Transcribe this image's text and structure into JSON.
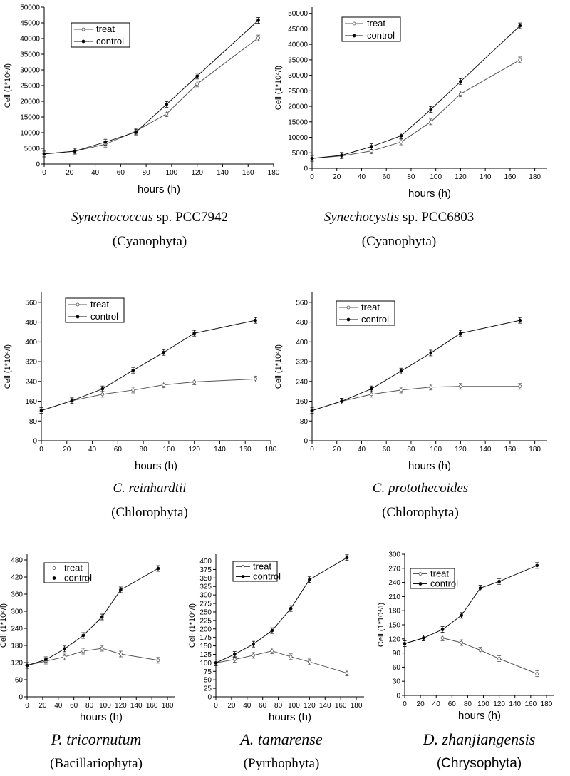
{
  "chart_data": [
    {
      "type": "line",
      "xlabel": "hours (h)",
      "ylabel": "Cell  (1*10⁴/l)",
      "xlim": [
        0,
        180
      ],
      "ylim": [
        0,
        50000
      ],
      "xticks": [
        0,
        20,
        40,
        60,
        80,
        100,
        120,
        140,
        160,
        180
      ],
      "yticks": [
        0,
        5000,
        10000,
        15000,
        20000,
        25000,
        30000,
        35000,
        40000,
        45000,
        50000
      ],
      "x": [
        0,
        24,
        48,
        72,
        96,
        120,
        168
      ],
      "series": [
        {
          "name": "treat",
          "marker": "open",
          "values": [
            3200,
            4100,
            6300,
            10500,
            16000,
            25500,
            40200
          ]
        },
        {
          "name": "control",
          "marker": "filled",
          "values": [
            3200,
            4100,
            7000,
            10200,
            19000,
            28000,
            45800
          ]
        }
      ],
      "legend_position": "top-left",
      "caption": {
        "species_italic": "Synechococcus",
        "species_rest": " sp. PCC7942",
        "division": "(Cyanophyta)"
      }
    },
    {
      "type": "line",
      "xlabel": "hours (h)",
      "ylabel": "Cell  (1*10⁴/l)",
      "xlim": [
        0,
        190
      ],
      "ylim": [
        0,
        52000
      ],
      "xticks": [
        0,
        20,
        40,
        60,
        80,
        100,
        120,
        140,
        160,
        180
      ],
      "yticks": [
        0,
        5000,
        10000,
        15000,
        20000,
        25000,
        30000,
        35000,
        40000,
        45000,
        50000
      ],
      "x": [
        0,
        24,
        48,
        72,
        96,
        120,
        168
      ],
      "series": [
        {
          "name": "treat",
          "marker": "open",
          "values": [
            3200,
            4000,
            5600,
            8500,
            15000,
            24000,
            35000
          ]
        },
        {
          "name": "control",
          "marker": "filled",
          "values": [
            3200,
            4200,
            7000,
            10500,
            19000,
            28000,
            46000
          ]
        }
      ],
      "legend_position": "top-left",
      "caption": {
        "species_italic": "Synechocystis",
        "species_rest": " sp. PCC6803",
        "division": "(Cyanophyta)"
      }
    },
    {
      "type": "line",
      "xlabel": "hours (h)",
      "ylabel": "Cell  (1*10⁴/l)",
      "xlim": [
        0,
        180
      ],
      "ylim": [
        0,
        600
      ],
      "xticks": [
        0,
        20,
        40,
        60,
        80,
        100,
        120,
        140,
        160,
        180
      ],
      "yticks": [
        0,
        80,
        160,
        240,
        320,
        400,
        480,
        560
      ],
      "x": [
        0,
        24,
        48,
        72,
        96,
        120,
        168
      ],
      "series": [
        {
          "name": "treat",
          "marker": "open",
          "values": [
            122,
            162,
            188,
            205,
            226,
            238,
            250
          ]
        },
        {
          "name": "control",
          "marker": "filled",
          "values": [
            122,
            162,
            210,
            285,
            357,
            435,
            487
          ]
        }
      ],
      "legend_position": "top-left",
      "caption": {
        "species_italic": "C. reinhardtii",
        "species_rest": "",
        "division": "(Chlorophyta)"
      }
    },
    {
      "type": "line",
      "xlabel": "hours (h)",
      "ylabel": "Cell  (1*10⁴/l)",
      "xlim": [
        0,
        190
      ],
      "ylim": [
        0,
        600
      ],
      "xticks": [
        0,
        20,
        40,
        60,
        80,
        100,
        120,
        140,
        160,
        180
      ],
      "yticks": [
        0,
        80,
        160,
        240,
        320,
        400,
        480,
        560
      ],
      "x": [
        0,
        24,
        48,
        72,
        96,
        120,
        168
      ],
      "series": [
        {
          "name": "treat",
          "marker": "open",
          "values": [
            122,
            160,
            188,
            205,
            217,
            220,
            220
          ]
        },
        {
          "name": "control",
          "marker": "filled",
          "values": [
            122,
            160,
            210,
            282,
            355,
            435,
            487
          ]
        }
      ],
      "legend_position": "top-left",
      "caption": {
        "species_italic": "C. protothecoides",
        "species_rest": "",
        "division": "(Chlorophyta)"
      }
    },
    {
      "type": "line",
      "xlabel": "hours (h)",
      "ylabel": "Cell  (1*10⁴/l)",
      "xlim": [
        0,
        190
      ],
      "ylim": [
        0,
        500
      ],
      "xticks": [
        0,
        20,
        40,
        60,
        80,
        100,
        120,
        140,
        160,
        180
      ],
      "yticks": [
        0,
        60,
        120,
        180,
        240,
        300,
        360,
        420,
        480
      ],
      "x": [
        0,
        24,
        48,
        72,
        96,
        120,
        168
      ],
      "series": [
        {
          "name": "treat",
          "marker": "open",
          "values": [
            110,
            125,
            140,
            160,
            170,
            150,
            128
          ]
        },
        {
          "name": "control",
          "marker": "filled",
          "values": [
            110,
            130,
            168,
            215,
            280,
            375,
            450
          ]
        }
      ],
      "legend_position": "top-left",
      "caption": {
        "species_italic": "P. tricornutum",
        "species_rest": "",
        "division": "(Bacillariophyta)"
      }
    },
    {
      "type": "line",
      "xlabel": "hours (h)",
      "ylabel": "Cell  (1*10⁴/l)",
      "xlim": [
        0,
        190
      ],
      "ylim": [
        0,
        420
      ],
      "xticks": [
        0,
        20,
        40,
        60,
        80,
        100,
        120,
        140,
        160,
        180
      ],
      "yticks": [
        0,
        25,
        50,
        75,
        100,
        125,
        150,
        175,
        200,
        225,
        250,
        275,
        300,
        325,
        350,
        375,
        400
      ],
      "x": [
        0,
        24,
        48,
        72,
        96,
        120,
        168
      ],
      "series": [
        {
          "name": "treat",
          "marker": "open",
          "values": [
            100,
            110,
            122,
            135,
            118,
            103,
            70
          ]
        },
        {
          "name": "control",
          "marker": "filled",
          "values": [
            100,
            125,
            155,
            195,
            260,
            345,
            410
          ]
        }
      ],
      "legend_position": "top-left",
      "caption": {
        "species_italic": "A. tamarense",
        "species_rest": "",
        "division": "(Pyrrhophyta)"
      }
    },
    {
      "type": "line",
      "xlabel": "hours (h)",
      "ylabel": "Cell  (1*10⁴/l)",
      "xlim": [
        0,
        190
      ],
      "ylim": [
        0,
        300
      ],
      "xticks": [
        0,
        20,
        40,
        60,
        80,
        100,
        120,
        140,
        160,
        180
      ],
      "yticks": [
        0,
        30,
        60,
        90,
        120,
        150,
        180,
        210,
        240,
        270,
        300
      ],
      "x": [
        0,
        24,
        48,
        72,
        96,
        120,
        168
      ],
      "series": [
        {
          "name": "treat",
          "marker": "open",
          "values": [
            110,
            122,
            122,
            112,
            96,
            78,
            46
          ]
        },
        {
          "name": "control",
          "marker": "filled",
          "values": [
            110,
            122,
            140,
            170,
            228,
            242,
            276
          ]
        }
      ],
      "legend_position": "top-right",
      "caption": {
        "species_italic": "D. zhanjiangensis",
        "species_rest": "",
        "division": "(Chrysophyta)"
      }
    }
  ]
}
